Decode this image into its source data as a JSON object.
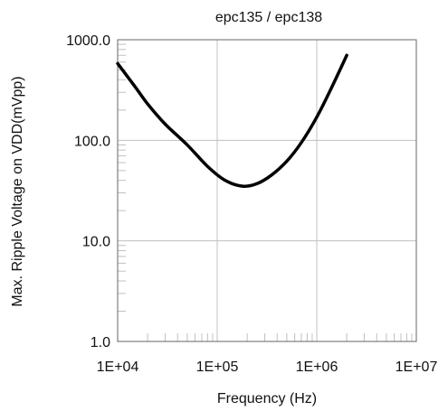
{
  "chart_data": {
    "type": "line",
    "title": "epc135 / epc138",
    "xlabel": "Frequency (Hz)",
    "ylabel": "Max. Ripple Voltage on VDD(mVpp)",
    "x_scale": "log",
    "y_scale": "log",
    "xlim": [
      10000,
      10000000
    ],
    "ylim": [
      1,
      1000
    ],
    "grid": true,
    "x_ticks": [
      10000,
      100000,
      1000000,
      10000000
    ],
    "x_tick_labels": [
      "1E+04",
      "1E+05",
      "1E+06",
      "1E+07"
    ],
    "y_ticks": [
      1,
      10,
      100,
      1000
    ],
    "y_tick_labels": [
      "1.0",
      "10.0",
      "100.0",
      "1000.0"
    ],
    "line_color": "#000000",
    "grid_color": "#c0c0c0",
    "series": [
      {
        "x": [
          10000,
          15000,
          20000,
          30000,
          50000,
          80000,
          120000,
          180000,
          250000,
          350000,
          500000,
          700000,
          1000000,
          1400000,
          2000000
        ],
        "y": [
          580,
          340,
          230,
          145,
          90,
          55,
          40,
          35,
          37,
          45,
          62,
          95,
          170,
          330,
          700
        ]
      }
    ]
  }
}
